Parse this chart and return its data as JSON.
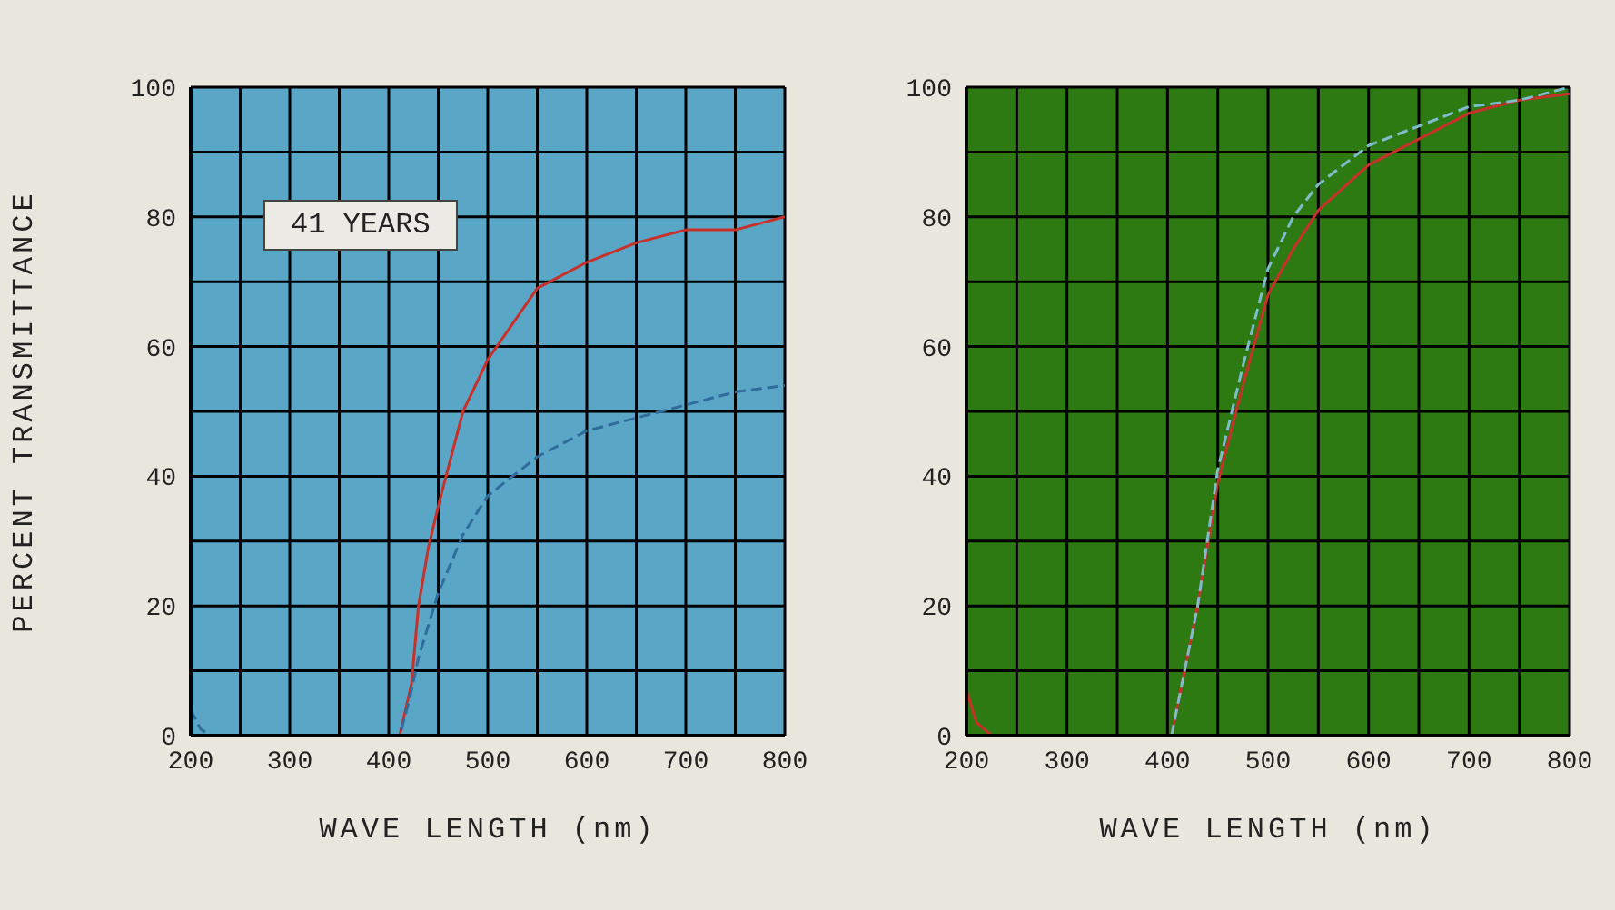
{
  "chart_data": [
    {
      "type": "line",
      "ylabel": "PERCENT TRANSMITTANCE",
      "xlabel": "WAVE LENGTH (nm)",
      "annotations": [
        "41 YEARS"
      ],
      "grid": true,
      "marker": "none",
      "xlim": [
        200,
        800
      ],
      "xticks": [
        200,
        {
          "value": 250,
          "label": null
        },
        300,
        {
          "value": 350,
          "label": null
        },
        400,
        {
          "value": 450,
          "label": null
        },
        500,
        {
          "value": 550,
          "label": null
        },
        600,
        {
          "value": 650,
          "label": null
        },
        700,
        {
          "value": 750,
          "label": null
        },
        800
      ],
      "ylim": [
        0,
        100
      ],
      "yticks": [
        0,
        {
          "value": 10,
          "label": null
        },
        20,
        {
          "value": 30,
          "label": null
        },
        40,
        {
          "value": 50,
          "label": null
        },
        60,
        {
          "value": 70,
          "label": null
        },
        80,
        {
          "value": 90,
          "label": null
        },
        100
      ],
      "series": [
        {
          "color": "#c8302a",
          "line_style": "solid",
          "x": [
            200,
            400,
            411,
            423,
            430,
            440,
            451,
            475,
            500,
            550,
            600,
            650,
            700,
            750,
            800
          ],
          "values": [
            0,
            0,
            0,
            8,
            20,
            29,
            36,
            50,
            58,
            69,
            73,
            76,
            78,
            78,
            80
          ]
        },
        {
          "color": "#2f6c9c",
          "line_style": "dashed",
          "x": [
            200,
            210,
            220,
            400,
            411,
            420,
            430,
            450,
            475,
            500,
            550,
            600,
            650,
            700,
            750,
            800
          ],
          "values": [
            4,
            1,
            0,
            0,
            0,
            5,
            12,
            22,
            31,
            37,
            43,
            47,
            49,
            51,
            53,
            54
          ]
        }
      ]
    },
    {
      "type": "line",
      "xlabel": "WAVE LENGTH (nm)",
      "grid": true,
      "marker": "none",
      "xlim": [
        200,
        800
      ],
      "xticks": [
        200,
        {
          "value": 250,
          "label": null
        },
        300,
        {
          "value": 350,
          "label": null
        },
        400,
        {
          "value": 450,
          "label": null
        },
        500,
        {
          "value": 550,
          "label": null
        },
        600,
        {
          "value": 650,
          "label": null
        },
        700,
        {
          "value": 750,
          "label": null
        },
        800
      ],
      "ylim": [
        0,
        100
      ],
      "yticks": [
        0,
        {
          "value": 10,
          "label": null
        },
        20,
        {
          "value": 30,
          "label": null
        },
        40,
        {
          "value": 50,
          "label": null
        },
        60,
        {
          "value": 70,
          "label": null
        },
        80,
        {
          "value": 90,
          "label": null
        },
        100
      ],
      "series": [
        {
          "color": "#c8302a",
          "line_style": "solid",
          "x": [
            200,
            210,
            225,
            400,
            404,
            430,
            450,
            475,
            500,
            525,
            550,
            600,
            650,
            700,
            750,
            800
          ],
          "values": [
            7,
            2,
            0,
            0,
            0,
            20,
            39,
            54,
            68,
            75,
            81,
            88,
            92,
            96,
            98,
            99
          ]
        },
        {
          "color": "#7fbccc",
          "line_style": "dashed",
          "x": [
            404,
            430,
            450,
            475,
            500,
            525,
            550,
            600,
            650,
            700,
            750,
            800
          ],
          "values": [
            0,
            20,
            41,
            57,
            72,
            80,
            85,
            91,
            94,
            97,
            98,
            100
          ]
        }
      ]
    }
  ]
}
